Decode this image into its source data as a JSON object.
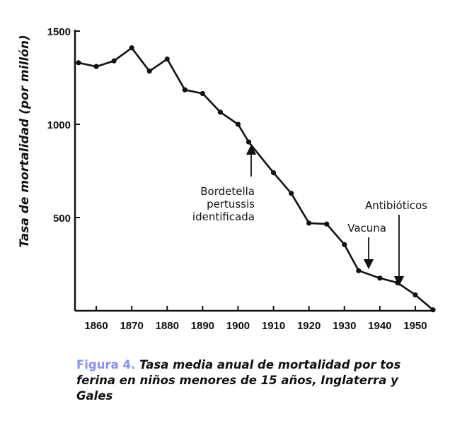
{
  "chart_data": {
    "type": "line",
    "ylabel": "Tasa de mortalidad (por millón)",
    "xlabel": "",
    "xlim": [
      1854,
      1955
    ],
    "ylim": [
      0,
      1500
    ],
    "x_ticks": [
      1860,
      1870,
      1880,
      1890,
      1900,
      1910,
      1920,
      1930,
      1940,
      1950
    ],
    "y_ticks": [
      500,
      1000,
      1500
    ],
    "series": [
      {
        "x": [
          1855,
          1860,
          1865,
          1870,
          1875,
          1880,
          1885,
          1890,
          1895,
          1900,
          1903,
          1910,
          1915,
          1920,
          1925,
          1930,
          1934,
          1940,
          1945,
          1950,
          1955
        ],
        "y": [
          1330,
          1310,
          1340,
          1410,
          1285,
          1350,
          1185,
          1165,
          1065,
          1000,
          905,
          740,
          630,
          470,
          465,
          355,
          215,
          175,
          150,
          85,
          5
        ]
      }
    ],
    "annotations": [
      {
        "lines": [
          "Bordetella",
          "pertussis",
          "identificada"
        ],
        "x": 1904
      },
      {
        "lines": [
          "Vacuna"
        ],
        "x": 1937
      },
      {
        "lines": [
          "Antibióticos"
        ],
        "x": 1945
      }
    ]
  },
  "caption": {
    "figure_label": "Figura 4.",
    "text": "Tasa media anual de mortalidad por tos ferina en niños menores de 15 años, Inglaterra y Gales"
  }
}
